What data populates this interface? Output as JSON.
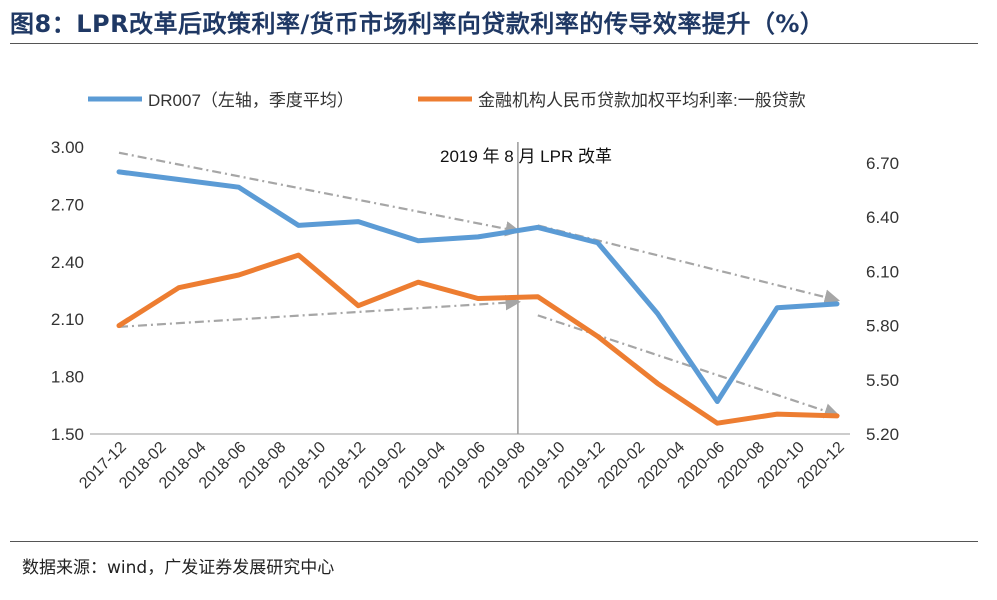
{
  "title": "图8：LPR改革后政策利率/货币市场利率向贷款利率的传导效率提升（%）",
  "source": "数据来源：wind，广发证券发展研究中心",
  "chart_data": {
    "type": "line",
    "categories": [
      "2017-12",
      "2018-02",
      "2018-04",
      "2018-06",
      "2018-08",
      "2018-10",
      "2018-12",
      "2019-02",
      "2019-04",
      "2019-06",
      "2019-08",
      "2019-10",
      "2019-12",
      "2020-02",
      "2020-04",
      "2020-06",
      "2020-08",
      "2020-10",
      "2020-12"
    ],
    "annotation": "2019 年 8 月 LPR 改革",
    "annotation_category": "2019-08",
    "left_axis": {
      "ylim": [
        1.5,
        3.0
      ],
      "ticks": [
        "3.00",
        "2.70",
        "2.40",
        "2.10",
        "1.80",
        "1.50"
      ]
    },
    "right_axis": {
      "ylim": [
        5.2,
        6.8
      ],
      "ticks": [
        "6.70",
        "6.40",
        "6.10",
        "5.80",
        "5.50",
        "5.20"
      ]
    },
    "series": [
      {
        "name": "DR007（左轴，季度平均）",
        "axis": "left",
        "color": "#5b9bd5",
        "x": [
          "2017-12",
          "2018-03",
          "2018-06",
          "2018-09",
          "2018-12",
          "2019-03",
          "2019-06",
          "2019-09",
          "2019-12",
          "2020-03",
          "2020-06",
          "2020-09",
          "2020-12"
        ],
        "values": [
          2.87,
          2.83,
          2.79,
          2.59,
          2.61,
          2.51,
          2.53,
          2.58,
          2.5,
          2.13,
          1.67,
          2.16,
          2.18
        ]
      },
      {
        "name": "金融机构人民币贷款加权平均利率:一般贷款",
        "axis": "right",
        "color": "#ed7d31",
        "x": [
          "2017-12",
          "2018-03",
          "2018-06",
          "2018-09",
          "2018-12",
          "2019-03",
          "2019-06",
          "2019-09",
          "2019-12",
          "2020-03",
          "2020-06",
          "2020-09",
          "2020-12"
        ],
        "values": [
          5.8,
          6.01,
          6.08,
          6.19,
          5.91,
          6.04,
          5.95,
          5.96,
          5.74,
          5.48,
          5.26,
          5.31,
          5.3
        ]
      }
    ],
    "trend_lines": [
      {
        "from": [
          "2017-12",
          2.97
        ],
        "to": [
          "2019-08",
          2.56
        ],
        "axis": "left"
      },
      {
        "from": [
          "2017-12",
          2.06
        ],
        "to": [
          "2019-08",
          2.19
        ],
        "axis": "left"
      },
      {
        "from": [
          "2019-09",
          2.59
        ],
        "to": [
          "2020-12",
          2.2
        ],
        "axis": "left"
      },
      {
        "from": [
          "2019-09",
          2.12
        ],
        "to": [
          "2020-12",
          1.6
        ],
        "axis": "left"
      }
    ]
  }
}
